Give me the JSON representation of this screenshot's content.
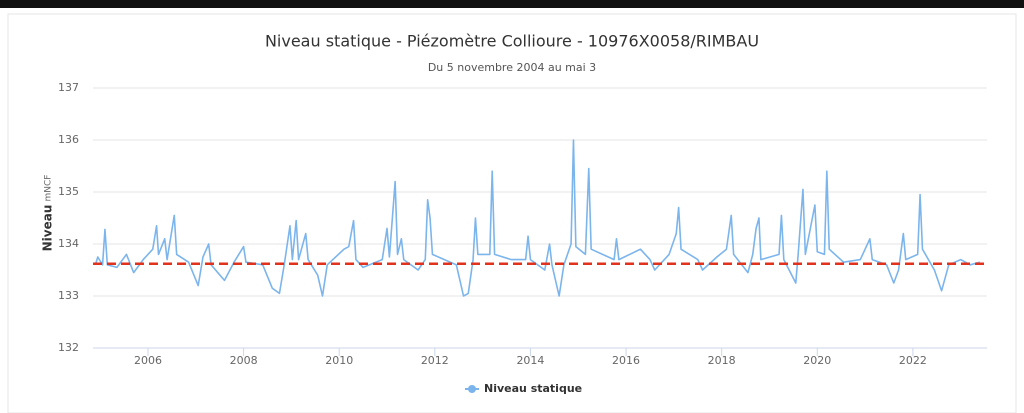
{
  "chart_data": {
    "type": "line",
    "title": "Niveau statique - Piézomètre Collioure - 10976X0058/RIMBAU",
    "subtitle": "Du 5 novembre 2004 au mai 3",
    "y_label": "Niveau",
    "y_unit": "mNCF",
    "x": [
      2004.9,
      2004.95,
      2005.05,
      2005.1,
      2005.15,
      2005.35,
      2005.55,
      2005.7,
      2005.9,
      2006.1,
      2006.18,
      2006.22,
      2006.35,
      2006.4,
      2006.55,
      2006.6,
      2006.85,
      2007.05,
      2007.15,
      2007.27,
      2007.32,
      2007.6,
      2007.8,
      2008.0,
      2008.05,
      2008.4,
      2008.6,
      2008.75,
      2008.85,
      2008.97,
      2009.02,
      2009.1,
      2009.15,
      2009.3,
      2009.35,
      2009.55,
      2009.65,
      2009.75,
      2010.1,
      2010.2,
      2010.3,
      2010.35,
      2010.5,
      2010.9,
      2011.0,
      2011.05,
      2011.17,
      2011.22,
      2011.3,
      2011.35,
      2011.65,
      2011.8,
      2011.85,
      2011.9,
      2011.95,
      2012.2,
      2012.45,
      2012.6,
      2012.7,
      2012.8,
      2012.85,
      2012.9,
      2013.15,
      2013.2,
      2013.25,
      2013.6,
      2013.9,
      2013.95,
      2014.0,
      2014.3,
      2014.4,
      2014.45,
      2014.6,
      2014.7,
      2014.85,
      2014.9,
      2014.95,
      2015.15,
      2015.22,
      2015.27,
      2015.75,
      2015.8,
      2015.85,
      2016.3,
      2016.5,
      2016.6,
      2016.9,
      2017.05,
      2017.1,
      2017.15,
      2017.5,
      2017.6,
      2017.9,
      2018.1,
      2018.2,
      2018.25,
      2018.55,
      2018.65,
      2018.72,
      2018.78,
      2018.82,
      2019.2,
      2019.25,
      2019.3,
      2019.55,
      2019.6,
      2019.7,
      2019.75,
      2019.95,
      2020.0,
      2020.15,
      2020.2,
      2020.25,
      2020.55,
      2020.9,
      2021.1,
      2021.15,
      2021.45,
      2021.6,
      2021.7,
      2021.8,
      2021.85,
      2022.1,
      2022.15,
      2022.2,
      2022.45,
      2022.6,
      2022.75,
      2023.0,
      2023.2,
      2023.4
    ],
    "series": [
      {
        "name": "Niveau statique",
        "color": "#7cb5ec",
        "values": [
          133.6,
          133.75,
          133.6,
          134.28,
          133.6,
          133.55,
          133.8,
          133.45,
          133.7,
          133.9,
          134.35,
          133.8,
          134.1,
          133.7,
          134.55,
          133.8,
          133.65,
          133.2,
          133.75,
          134.0,
          133.6,
          133.3,
          133.65,
          133.95,
          133.65,
          133.6,
          133.15,
          133.05,
          133.6,
          134.35,
          133.7,
          134.45,
          133.7,
          134.2,
          133.7,
          133.4,
          133.0,
          133.6,
          133.9,
          133.95,
          134.45,
          133.7,
          133.55,
          133.7,
          134.3,
          133.75,
          135.2,
          133.8,
          134.1,
          133.7,
          133.5,
          133.7,
          134.85,
          134.5,
          133.8,
          133.7,
          133.6,
          133.0,
          133.05,
          133.7,
          134.5,
          133.8,
          133.8,
          135.4,
          133.8,
          133.7,
          133.7,
          134.15,
          133.7,
          133.5,
          134.0,
          133.6,
          133.0,
          133.6,
          134.0,
          136.0,
          133.95,
          133.8,
          135.45,
          133.9,
          133.7,
          134.1,
          133.7,
          133.9,
          133.7,
          133.5,
          133.8,
          134.2,
          134.7,
          133.9,
          133.7,
          133.5,
          133.75,
          133.9,
          134.55,
          133.8,
          133.45,
          133.8,
          134.3,
          134.5,
          133.7,
          133.8,
          134.55,
          133.7,
          133.25,
          133.8,
          135.05,
          133.8,
          134.75,
          133.85,
          133.8,
          135.4,
          133.9,
          133.65,
          133.7,
          134.1,
          133.7,
          133.6,
          133.25,
          133.5,
          134.2,
          133.7,
          133.8,
          134.95,
          133.9,
          133.5,
          133.1,
          133.6,
          133.7,
          133.6,
          133.65
        ]
      }
    ],
    "reference_line": {
      "value": 133.62,
      "color": "#e0321c",
      "dashed": true
    },
    "xlim": [
      2004.85,
      2023.55
    ],
    "xticks": [
      2006,
      2008,
      2010,
      2012,
      2014,
      2016,
      2018,
      2020,
      2022
    ],
    "ylim": [
      132,
      137
    ],
    "yticks": [
      132,
      133,
      134,
      135,
      136,
      137
    ],
    "grid": true,
    "legend": "bottom"
  }
}
